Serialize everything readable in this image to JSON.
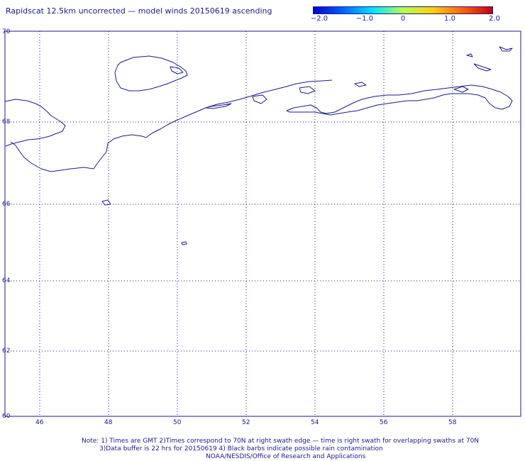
{
  "title": "Rapidscat 12.5km uncorrected — model winds 20150619 ascending",
  "colorbar": {
    "ticks": [
      "−2.0",
      "−1.0",
      "0",
      "1.0",
      "2.0"
    ],
    "colors": [
      "#0000c8",
      "#0064ff",
      "#00e6ff",
      "#b4ff50",
      "#ffd200",
      "#ff6400",
      "#c80000"
    ]
  },
  "latitude_labels": [
    "70",
    "68",
    "66",
    "64",
    "62",
    "60"
  ],
  "longitude_labels": [
    "46",
    "48",
    "50",
    "52",
    "54",
    "56",
    "58"
  ],
  "notes": {
    "line1": "Note: 1) Times are GMT 2)Times correspond to 70N at right swath edge — time is right swath for overlapping swaths at 70N",
    "line2": "3)Data buffer is 22 hrs for 20150619 4) Black barbs indicate possible rain contamination",
    "line3": "NOAA/NESDIS/Office of Research and Applications"
  },
  "colors": {
    "frame": "#1a1a8c",
    "grid": "#1a1a8c",
    "coast": "#1a1a8c"
  }
}
